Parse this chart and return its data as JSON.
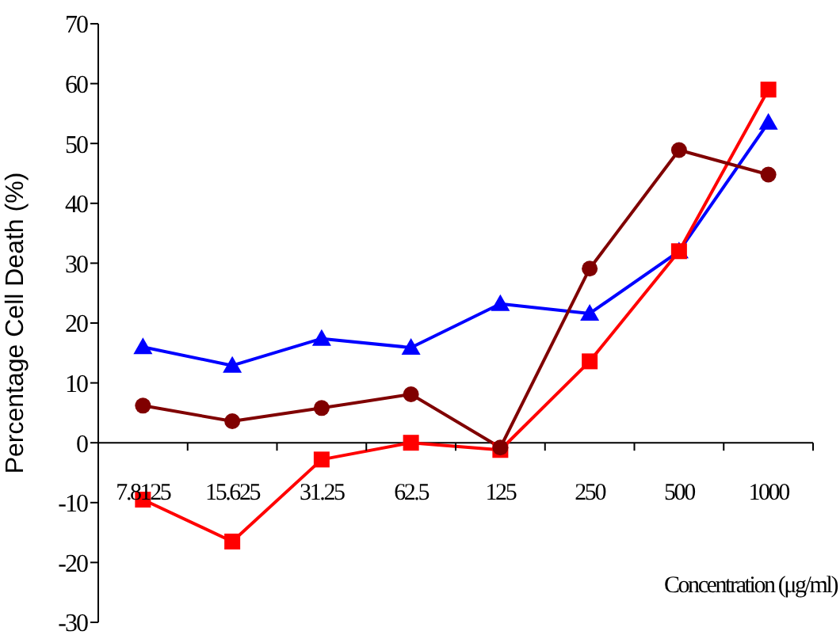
{
  "chart_data": {
    "type": "line",
    "xlabel": "Concentration (μg/ml)",
    "ylabel": "Percentage Cell Death (%)",
    "categories": [
      "7.8125",
      "15.625",
      "31.25",
      "62.5",
      "125",
      "250",
      "500",
      "1000"
    ],
    "series": [
      {
        "color": "#0000ff",
        "marker": "triangle",
        "values": [
          16,
          12.9,
          17.4,
          15.9,
          23.2,
          21.6,
          32,
          53.5
        ]
      },
      {
        "color": "#ff0000",
        "marker": "square",
        "values": [
          -9.5,
          -16.5,
          -2.8,
          0,
          -1.2,
          13.6,
          32,
          59
        ]
      },
      {
        "color": "#800000",
        "marker": "circle",
        "values": [
          6.2,
          3.6,
          5.8,
          8.1,
          -0.8,
          29.1,
          48.9,
          44.8
        ]
      }
    ],
    "ylim": [
      -30,
      70
    ],
    "yticks": [
      -30,
      -20,
      -10,
      0,
      10,
      20,
      30,
      40,
      50,
      60,
      70
    ]
  }
}
